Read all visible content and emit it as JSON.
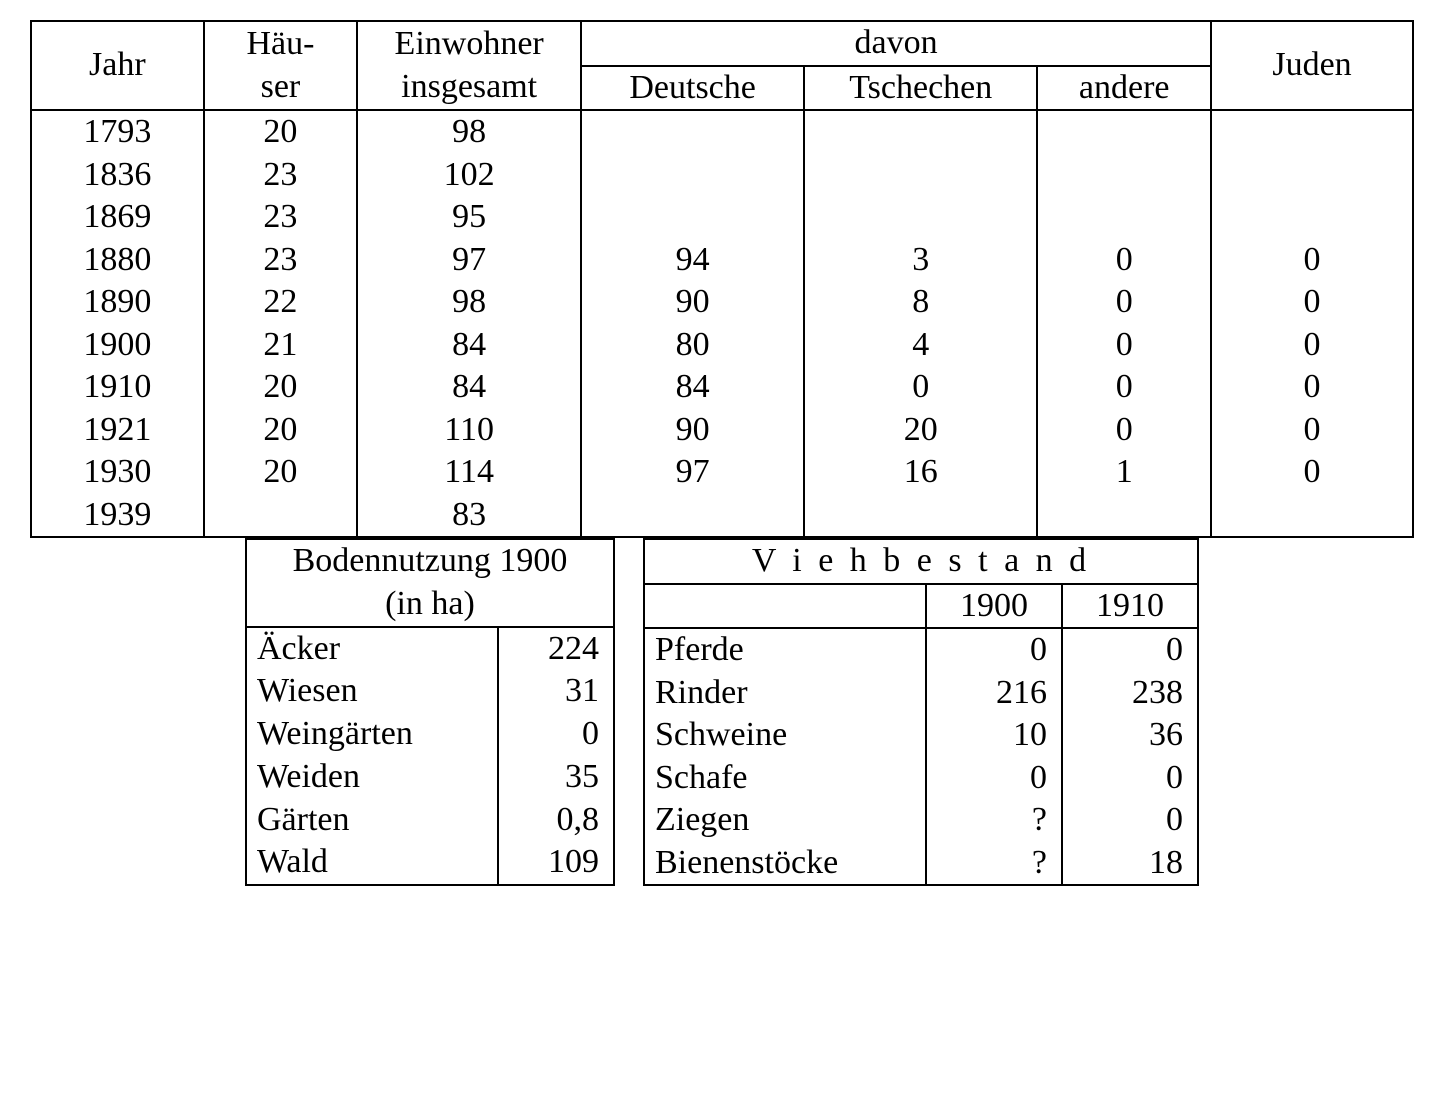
{
  "font_family": "Times New Roman",
  "text_color": "#000000",
  "background_color": "#ffffff",
  "border_color": "#000000",
  "font_size_pt": 26,
  "pop_table": {
    "type": "table",
    "headers": {
      "jahr": "Jahr",
      "haeuser_l1": "Häu-",
      "haeuser_l2": "ser",
      "einw_l1": "Einwohner",
      "einw_l2": "insgesamt",
      "davon": "davon",
      "deutsche": "Deutsche",
      "tschechen": "Tschechen",
      "andere": "andere",
      "juden": "Juden"
    },
    "rows": [
      {
        "jahr": "1793",
        "haeuser": "20",
        "einw": "98",
        "deutsche": "",
        "tschechen": "",
        "andere": "",
        "juden": ""
      },
      {
        "jahr": "1836",
        "haeuser": "23",
        "einw": "102",
        "deutsche": "",
        "tschechen": "",
        "andere": "",
        "juden": ""
      },
      {
        "jahr": "1869",
        "haeuser": "23",
        "einw": "95",
        "deutsche": "",
        "tschechen": "",
        "andere": "",
        "juden": ""
      },
      {
        "jahr": "1880",
        "haeuser": "23",
        "einw": "97",
        "deutsche": "94",
        "tschechen": "3",
        "andere": "0",
        "juden": "0"
      },
      {
        "jahr": "1890",
        "haeuser": "22",
        "einw": "98",
        "deutsche": "90",
        "tschechen": "8",
        "andere": "0",
        "juden": "0"
      },
      {
        "jahr": "1900",
        "haeuser": "21",
        "einw": "84",
        "deutsche": "80",
        "tschechen": "4",
        "andere": "0",
        "juden": "0"
      },
      {
        "jahr": "1910",
        "haeuser": "20",
        "einw": "84",
        "deutsche": "84",
        "tschechen": "0",
        "andere": "0",
        "juden": "0"
      },
      {
        "jahr": "1921",
        "haeuser": "20",
        "einw": "110",
        "deutsche": "90",
        "tschechen": "20",
        "andere": "0",
        "juden": "0"
      },
      {
        "jahr": "1930",
        "haeuser": "20",
        "einw": "114",
        "deutsche": "97",
        "tschechen": "16",
        "andere": "1",
        "juden": "0"
      },
      {
        "jahr": "1939",
        "haeuser": "",
        "einw": "83",
        "deutsche": "",
        "tschechen": "",
        "andere": "",
        "juden": ""
      }
    ]
  },
  "boden_table": {
    "type": "table",
    "title_l1": "Bodennutzung 1900",
    "title_l2": "(in ha)",
    "rows": [
      {
        "label": "Äcker",
        "value": "224"
      },
      {
        "label": "Wiesen",
        "value": "31"
      },
      {
        "label": "Weingärten",
        "value": "0"
      },
      {
        "label": "Weiden",
        "value": "35"
      },
      {
        "label": "Gärten",
        "value": "0,8"
      },
      {
        "label": "Wald",
        "value": "109"
      }
    ]
  },
  "vieh_table": {
    "type": "table",
    "title": "V i e h b e s t a n d",
    "year_a": "1900",
    "year_b": "1910",
    "rows": [
      {
        "label": "Pferde",
        "a": "0",
        "b": "0"
      },
      {
        "label": "Rinder",
        "a": "216",
        "b": "238"
      },
      {
        "label": "Schweine",
        "a": "10",
        "b": "36"
      },
      {
        "label": "Schafe",
        "a": "0",
        "b": "0"
      },
      {
        "label": "Ziegen",
        "a": "?",
        "b": "0"
      },
      {
        "label": "Bienenstöcke",
        "a": "?",
        "b": "18"
      }
    ]
  }
}
